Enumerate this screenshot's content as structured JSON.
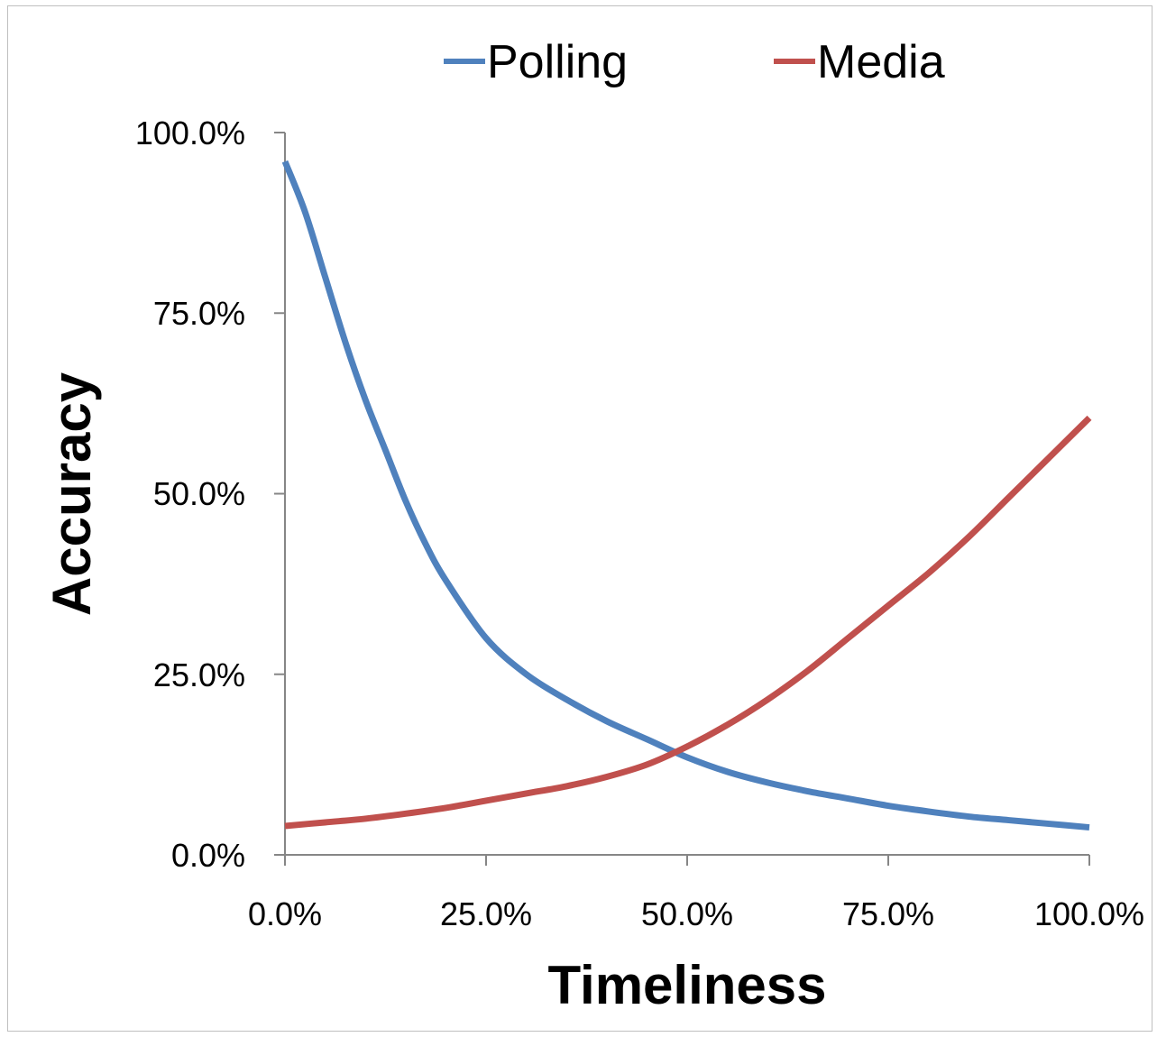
{
  "chart_data": {
    "type": "line",
    "xlabel": "Timeliness",
    "ylabel": "Accuracy",
    "xlim": [
      0,
      100
    ],
    "ylim": [
      0,
      100
    ],
    "x_ticks": [
      "0.0%",
      "25.0%",
      "50.0%",
      "75.0%",
      "100.0%"
    ],
    "y_ticks": [
      "0.0%",
      "25.0%",
      "50.0%",
      "75.0%",
      "100.0%"
    ],
    "legend_position": "top",
    "grid": false,
    "series": [
      {
        "name": "Polling",
        "color": "#4F81BD",
        "x": [
          0,
          2.5,
          5,
          7.5,
          10,
          12.5,
          15,
          17.5,
          20,
          25,
          30,
          35,
          40,
          45,
          50,
          55,
          60,
          65,
          70,
          75,
          80,
          85,
          90,
          95,
          100
        ],
        "y": [
          96,
          89,
          80,
          71,
          63,
          56,
          49,
          43,
          38,
          30,
          25,
          21.5,
          18.5,
          16,
          13.5,
          11.5,
          10,
          8.8,
          7.8,
          6.8,
          6,
          5.3,
          4.8,
          4.3,
          3.8
        ]
      },
      {
        "name": "Media",
        "color": "#C0504D",
        "x": [
          0,
          5,
          10,
          15,
          20,
          25,
          30,
          35,
          40,
          45,
          50,
          55,
          60,
          65,
          70,
          75,
          80,
          85,
          90,
          95,
          100
        ],
        "y": [
          4,
          4.5,
          5,
          5.7,
          6.5,
          7.5,
          8.5,
          9.5,
          10.8,
          12.5,
          15,
          18,
          21.5,
          25.5,
          30,
          34.5,
          39,
          44,
          49.5,
          55,
          60.5
        ]
      }
    ]
  }
}
